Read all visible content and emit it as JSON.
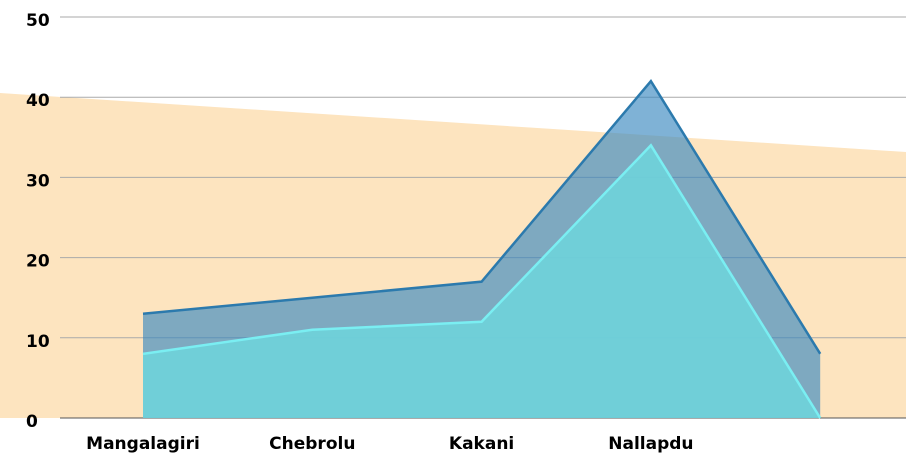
{
  "chart_data": {
    "type": "area",
    "categories": [
      "Mangalagiri",
      "Chebrolu",
      "Kakani",
      "Nallapdu",
      null
    ],
    "series": [
      {
        "color": "#3a88c0",
        "values": [
          13,
          15,
          17,
          42,
          8
        ]
      },
      {
        "color": "#6fd3da",
        "values": [
          8,
          11,
          12,
          34,
          0
        ]
      }
    ],
    "ylim": [
      0,
      50
    ],
    "yticks": [
      0,
      10,
      20,
      30,
      40,
      50
    ],
    "grid": true
  }
}
